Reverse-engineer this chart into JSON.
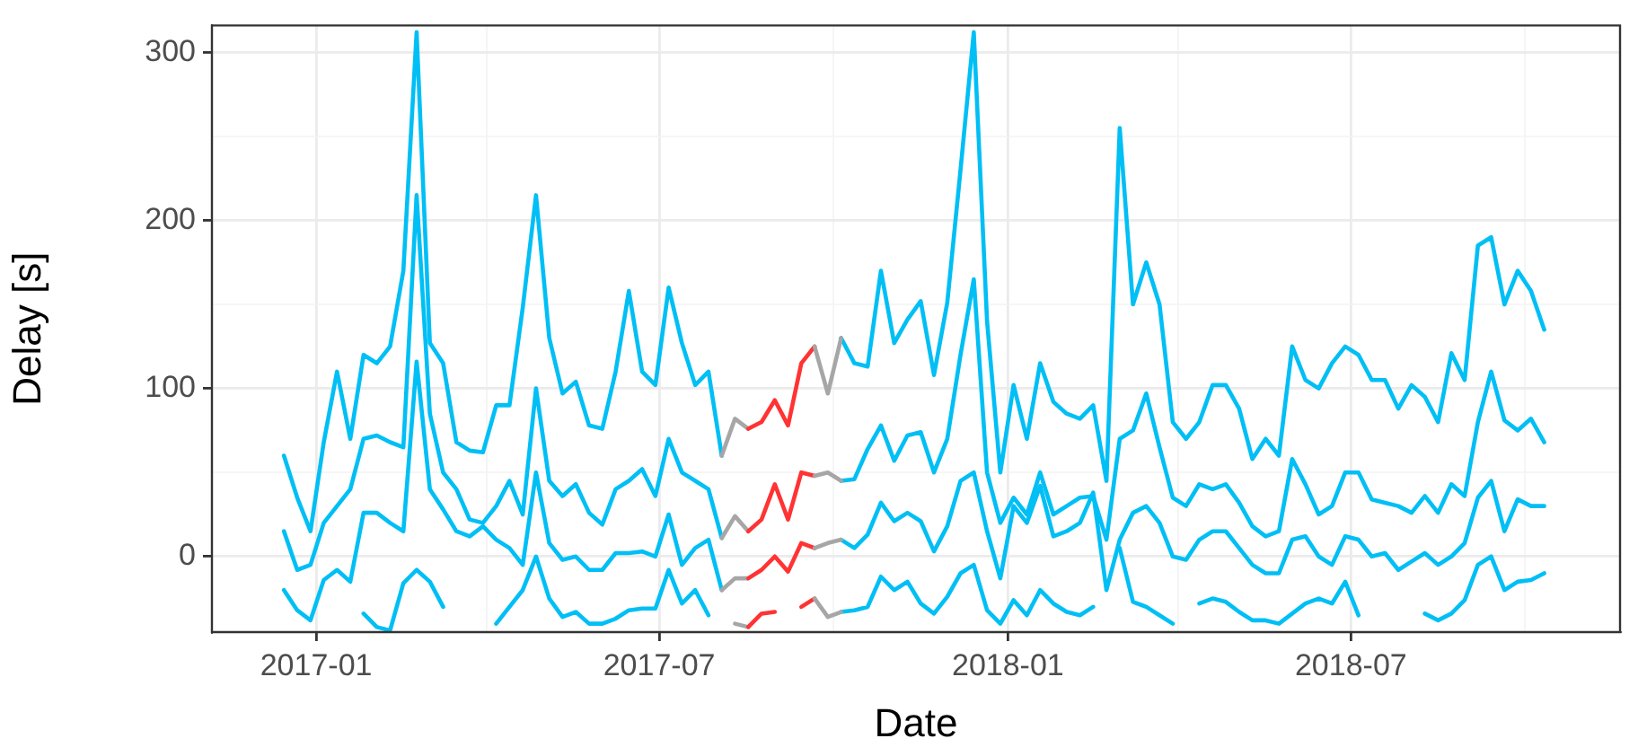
{
  "chart_data": {
    "type": "line",
    "xlabel": "Date",
    "ylabel": "Delay [s]",
    "grid": true,
    "legend": false,
    "marker": "none",
    "line_style": "solid",
    "xlim": [
      "2016-11-07",
      "2018-11-20"
    ],
    "ylim": [
      -45,
      316
    ],
    "xticks": [
      "2017-01",
      {
        "value": "2017-04",
        "label": null
      },
      "2017-07",
      {
        "value": "2017-10",
        "label": null
      },
      "2018-01",
      {
        "value": "2018-04",
        "label": null
      },
      "2018-07",
      {
        "value": "2018-10",
        "label": null
      }
    ],
    "yticks": [
      0,
      {
        "value": 50,
        "label": null
      },
      100,
      {
        "value": 150,
        "label": null
      },
      200,
      {
        "value": 250,
        "label": null
      },
      300
    ],
    "x": [
      "2016-12-15",
      "2016-12-22",
      "2016-12-29",
      "2017-01-05",
      "2017-01-12",
      "2017-01-19",
      "2017-01-26",
      "2017-02-02",
      "2017-02-09",
      "2017-02-16",
      "2017-02-23",
      "2017-03-02",
      "2017-03-09",
      "2017-03-16",
      "2017-03-23",
      "2017-03-30",
      "2017-04-06",
      "2017-04-13",
      "2017-04-20",
      "2017-04-27",
      "2017-05-04",
      "2017-05-11",
      "2017-05-18",
      "2017-05-25",
      "2017-06-01",
      "2017-06-08",
      "2017-06-15",
      "2017-06-22",
      "2017-06-29",
      "2017-07-06",
      "2017-07-13",
      "2017-07-20",
      "2017-07-27",
      "2017-08-03",
      "2017-08-10",
      "2017-08-17",
      "2017-08-24",
      "2017-08-31",
      "2017-09-07",
      "2017-09-14",
      "2017-09-21",
      "2017-09-28",
      "2017-10-05",
      "2017-10-12",
      "2017-10-19",
      "2017-10-26",
      "2017-11-02",
      "2017-11-09",
      "2017-11-16",
      "2017-11-23",
      "2017-11-30",
      "2017-12-07",
      "2017-12-14",
      "2017-12-21",
      "2017-12-28",
      "2018-01-04",
      "2018-01-11",
      "2018-01-18",
      "2018-01-25",
      "2018-02-01",
      "2018-02-08",
      "2018-02-15",
      "2018-02-22",
      "2018-03-01",
      "2018-03-08",
      "2018-03-15",
      "2018-03-22",
      "2018-03-29",
      "2018-04-05",
      "2018-04-12",
      "2018-04-19",
      "2018-04-26",
      "2018-05-03",
      "2018-05-10",
      "2018-05-17",
      "2018-05-24",
      "2018-05-31",
      "2018-06-07",
      "2018-06-14",
      "2018-06-21",
      "2018-06-28",
      "2018-07-05",
      "2018-07-12",
      "2018-07-19",
      "2018-07-26",
      "2018-08-02",
      "2018-08-09",
      "2018-08-16",
      "2018-08-23",
      "2018-08-30",
      "2018-09-06",
      "2018-09-13",
      "2018-09-20",
      "2018-09-27",
      "2018-10-04",
      "2018-10-11"
    ],
    "series": [
      {
        "color": "#00bff5",
        "values": [
          60,
          35,
          15,
          68,
          110,
          70,
          120,
          115,
          125,
          170,
          312,
          127,
          115,
          68,
          63,
          62,
          90,
          90,
          148,
          215,
          130,
          97,
          104,
          78,
          76,
          110,
          158,
          110,
          102,
          160,
          127,
          102,
          110,
          60,
          null,
          null,
          null,
          null,
          null,
          null,
          null,
          null,
          130,
          115,
          113,
          170,
          127,
          141,
          152,
          108,
          151,
          230,
          312,
          140,
          50,
          102,
          70,
          115,
          92,
          85,
          82,
          90,
          45,
          255,
          150,
          175,
          150,
          80,
          70,
          80,
          102,
          102,
          88,
          58,
          70,
          60,
          125,
          105,
          100,
          115,
          125,
          120,
          105,
          105,
          88,
          102,
          95,
          80,
          121,
          105,
          185,
          190,
          150,
          170,
          158,
          135
        ]
      },
      {
        "color": "#00bff5",
        "values": [
          15,
          -8,
          -5,
          20,
          30,
          40,
          70,
          72,
          68,
          65,
          215,
          85,
          50,
          40,
          22,
          20,
          30,
          45,
          25,
          100,
          45,
          36,
          43,
          26,
          19,
          40,
          45,
          52,
          36,
          70,
          50,
          45,
          40,
          11,
          null,
          null,
          null,
          null,
          null,
          null,
          null,
          null,
          45,
          46,
          64,
          78,
          57,
          72,
          74,
          50,
          70,
          120,
          165,
          50,
          20,
          35,
          25,
          50,
          25,
          30,
          35,
          36,
          10,
          70,
          75,
          97,
          65,
          35,
          30,
          43,
          40,
          43,
          32,
          18,
          12,
          15,
          58,
          43,
          25,
          30,
          50,
          50,
          34,
          32,
          30,
          26,
          36,
          26,
          43,
          36,
          80,
          110,
          81,
          75,
          82,
          68
        ]
      },
      {
        "color": "#00bff5",
        "values": [
          -20,
          -32,
          -38,
          -14,
          -8,
          -15,
          26,
          26,
          20,
          15,
          116,
          40,
          28,
          15,
          12,
          18,
          10,
          5,
          -5,
          50,
          8,
          -2,
          0,
          -8,
          -8,
          2,
          2,
          3,
          0,
          25,
          -5,
          5,
          10,
          -20,
          null,
          null,
          null,
          null,
          null,
          null,
          null,
          null,
          10,
          5,
          13,
          32,
          21,
          26,
          21,
          3,
          18,
          45,
          50,
          15,
          -13,
          30,
          20,
          42,
          12,
          15,
          20,
          38,
          -20,
          10,
          26,
          30,
          20,
          0,
          -2,
          10,
          15,
          15,
          5,
          -5,
          -10,
          -10,
          10,
          12,
          0,
          -5,
          12,
          10,
          0,
          2,
          -8,
          -3,
          2,
          -5,
          0,
          8,
          35,
          45,
          15,
          34,
          30,
          30
        ]
      },
      {
        "color": "#00bff5",
        "values": [
          null,
          null,
          null,
          null,
          null,
          null,
          -34,
          -42,
          -44,
          -16,
          -8,
          -15,
          -30,
          null,
          null,
          null,
          -40,
          -30,
          -20,
          0,
          -25,
          -36,
          -33,
          -40,
          -40,
          -37,
          -32,
          -31,
          -31,
          -8,
          -28,
          -20,
          -35,
          null,
          null,
          null,
          null,
          null,
          null,
          null,
          null,
          null,
          -33,
          -32,
          -30,
          -12,
          -20,
          -15,
          -28,
          -34,
          -24,
          -10,
          -5,
          -32,
          -40,
          -26,
          -35,
          -20,
          -28,
          -33,
          -35,
          -30,
          null,
          5,
          -27,
          -30,
          -35,
          -40,
          null,
          -28,
          -25,
          -27,
          -33,
          -38,
          -38,
          -40,
          -34,
          -28,
          -25,
          -28,
          -15,
          -35,
          null,
          null,
          null,
          null,
          -34,
          -38,
          -34,
          -26,
          -5,
          0,
          -20,
          -15,
          -14,
          -10
        ]
      },
      {
        "color": "#a6a6a6",
        "x": [
          "2017-08-03",
          "2017-08-10",
          "2017-08-17"
        ],
        "values": [
          60,
          82,
          76
        ]
      },
      {
        "color": "#a6a6a6",
        "x": [
          "2017-08-03",
          "2017-08-10",
          "2017-08-17"
        ],
        "values": [
          11,
          24,
          15
        ]
      },
      {
        "color": "#a6a6a6",
        "x": [
          "2017-08-03",
          "2017-08-10",
          "2017-08-17"
        ],
        "values": [
          -20,
          -13,
          -13
        ]
      },
      {
        "color": "#a6a6a6",
        "x": [
          "2017-08-10",
          "2017-08-17"
        ],
        "values": [
          -40,
          -42
        ]
      },
      {
        "color": "#ff3333",
        "x": [
          "2017-08-17",
          "2017-08-24",
          "2017-08-31",
          "2017-09-07",
          "2017-09-14",
          "2017-09-21"
        ],
        "values": [
          76,
          80,
          93,
          78,
          115,
          125
        ]
      },
      {
        "color": "#ff3333",
        "x": [
          "2017-08-17",
          "2017-08-24",
          "2017-08-31",
          "2017-09-07",
          "2017-09-14",
          "2017-09-21"
        ],
        "values": [
          15,
          22,
          43,
          22,
          50,
          48
        ]
      },
      {
        "color": "#ff3333",
        "x": [
          "2017-08-17",
          "2017-08-24",
          "2017-08-31",
          "2017-09-07",
          "2017-09-14",
          "2017-09-21"
        ],
        "values": [
          -13,
          -8,
          0,
          -9,
          8,
          5
        ]
      },
      {
        "color": "#ff3333",
        "x": [
          "2017-08-17",
          "2017-08-24",
          "2017-08-31",
          "2017-09-07",
          "2017-09-14",
          "2017-09-21"
        ],
        "values": [
          -42,
          -34,
          -33,
          null,
          -30,
          -25
        ]
      },
      {
        "color": "#a6a6a6",
        "x": [
          "2017-09-21",
          "2017-09-28",
          "2017-10-05"
        ],
        "values": [
          125,
          97,
          130
        ]
      },
      {
        "color": "#a6a6a6",
        "x": [
          "2017-09-21",
          "2017-09-28",
          "2017-10-05"
        ],
        "values": [
          48,
          50,
          45
        ]
      },
      {
        "color": "#a6a6a6",
        "x": [
          "2017-09-21",
          "2017-09-28",
          "2017-10-05"
        ],
        "values": [
          -25,
          -36,
          -33
        ]
      },
      {
        "color": "#a6a6a6",
        "x": [
          "2017-09-21",
          "2017-09-28",
          "2017-10-05"
        ],
        "values": [
          5,
          8,
          10
        ]
      }
    ]
  }
}
